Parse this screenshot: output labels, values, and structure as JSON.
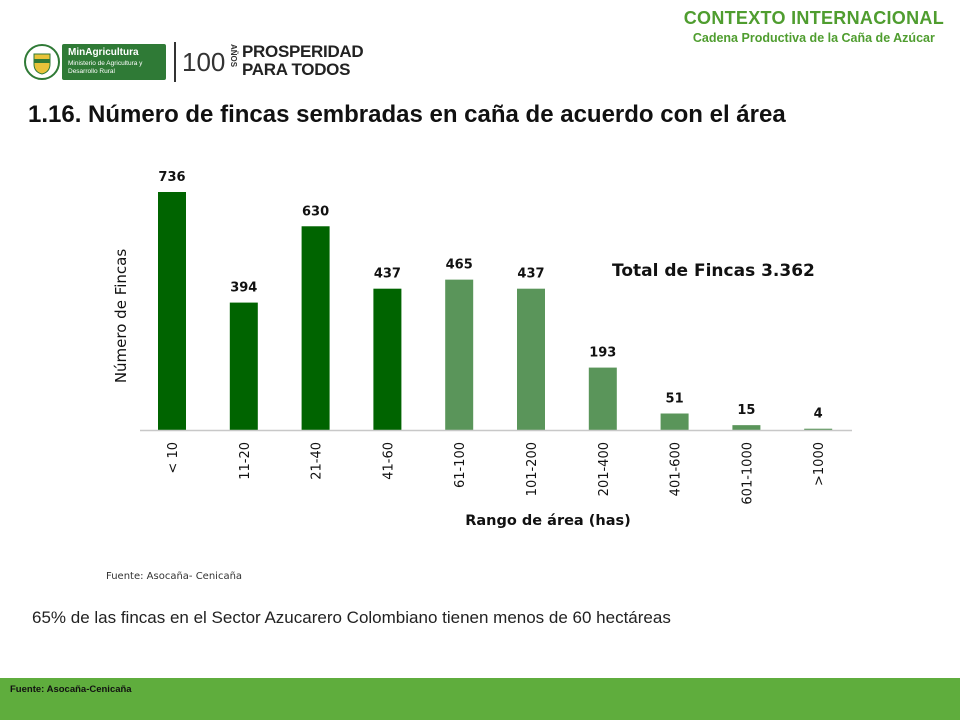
{
  "header": {
    "title": "CONTEXTO INTERNACIONAL",
    "subtitle": "Cadena Productiva de la Caña de Azúcar"
  },
  "logos": {
    "ministry_name": "MinAgricultura",
    "ministry_desc": "Ministerio de Agricultura y Desarrollo Rural",
    "years": "100",
    "years_suffix": "AÑOS",
    "slogan_line1": "PROSPERIDAD",
    "slogan_line2": "PARA TODOS"
  },
  "slide": {
    "title": "1.16. Número de fincas sembradas en caña de acuerdo con el área",
    "chart_source": "Fuente: Asocaña- Cenicaña",
    "note": "65% de las fincas en el Sector Azucarero Colombiano tienen menos de 60 hectáreas",
    "footer_source": "Fuente: Asocaña-Cenicaña"
  },
  "colors": {
    "dark_bar": "#006400",
    "light_bar": "#5a955a",
    "accent": "#4f9d2f",
    "footer": "#5fad3d"
  },
  "chart_data": {
    "type": "bar",
    "categories": [
      "< 10",
      "11-20",
      "21-40",
      "41-60",
      "61-100",
      "101-200",
      "201-400",
      "401-600",
      "601-1000",
      ">1000"
    ],
    "values": [
      736,
      394,
      630,
      437,
      465,
      437,
      193,
      51,
      15,
      4
    ],
    "shade": [
      "dark",
      "dark",
      "dark",
      "dark",
      "light",
      "light",
      "light",
      "light",
      "light",
      "light"
    ],
    "xlabel": "Rango de área (has)",
    "ylabel": "Número de Fincas",
    "annotation": "Total de Fincas 3.362",
    "ylim": [
      0,
      800
    ],
    "grid": false,
    "legend": "none"
  }
}
